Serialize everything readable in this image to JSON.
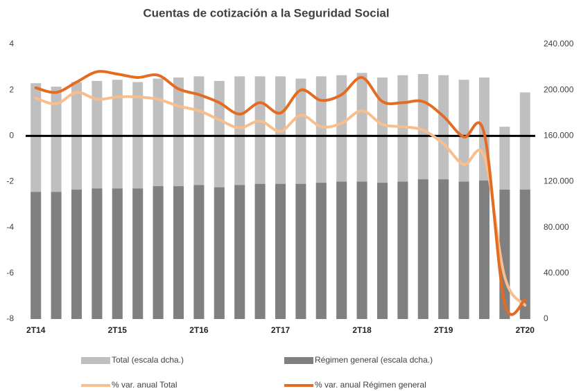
{
  "chart_data": {
    "type": "bar_line",
    "title": "Cuentas de cotización a la Seguridad Social",
    "categories": [
      "2T14",
      null,
      null,
      null,
      "2T15",
      null,
      null,
      null,
      "2T16",
      null,
      null,
      null,
      "2T17",
      null,
      null,
      null,
      "2T18",
      null,
      null,
      null,
      "2T19",
      null,
      null,
      null,
      "2T20"
    ],
    "ylim": [
      -8,
      4
    ],
    "yticks": [
      -8,
      -6,
      -4,
      -2,
      0,
      2,
      4
    ],
    "y2lim": [
      0,
      240000
    ],
    "y2ticks": [
      {
        "value": 0,
        "label": "0"
      },
      {
        "value": 40000,
        "label": "40.000"
      },
      {
        "value": 80000,
        "label": "80.000"
      },
      {
        "value": 120000,
        "label": "120.000"
      },
      {
        "value": 160000,
        "label": "160.000"
      },
      {
        "value": 200000,
        "label": "200.000"
      },
      {
        "value": 240000,
        "label": "240.000"
      }
    ],
    "grid": false,
    "series": [
      {
        "name": "Total (escala dcha.)",
        "kind": "bar",
        "axis": "y2",
        "color": "#bfbfbf",
        "values": [
          206000,
          203000,
          207000,
          208000,
          209000,
          207000,
          210000,
          211000,
          212000,
          208000,
          212000,
          212000,
          212000,
          210000,
          212000,
          213000,
          215000,
          211000,
          213000,
          214000,
          213000,
          209000,
          211000,
          168000,
          198000
        ]
      },
      {
        "name": "Régimen general (escala dcha.)",
        "kind": "bar",
        "axis": "y2",
        "color": "#808080",
        "values": [
          111000,
          111000,
          113000,
          114000,
          114000,
          114000,
          116000,
          116000,
          117000,
          115000,
          117000,
          118000,
          118000,
          118000,
          119000,
          120000,
          120000,
          119000,
          120000,
          122000,
          122000,
          120000,
          121000,
          113000,
          113000
        ]
      },
      {
        "name": "% var. anual Total",
        "kind": "line",
        "axis": "y",
        "color": "#f9be8e",
        "values": [
          1.65,
          1.4,
          1.9,
          1.6,
          1.7,
          1.7,
          1.6,
          1.3,
          1.1,
          0.7,
          0.35,
          0.65,
          0.2,
          0.9,
          0.4,
          0.55,
          1.1,
          0.5,
          0.4,
          0.25,
          -0.35,
          -1.25,
          -0.9,
          -6.15,
          -7.4
        ]
      },
      {
        "name": "% var. anual Régimen general",
        "kind": "line",
        "axis": "y",
        "color": "#e46c22",
        "values": [
          2.1,
          1.9,
          2.35,
          2.8,
          2.7,
          2.55,
          2.65,
          2.05,
          1.8,
          1.45,
          0.95,
          1.45,
          1.0,
          2.0,
          1.55,
          1.8,
          2.55,
          1.5,
          1.45,
          1.5,
          0.85,
          -0.05,
          0.1,
          -7.3,
          -7.15
        ]
      }
    ]
  }
}
